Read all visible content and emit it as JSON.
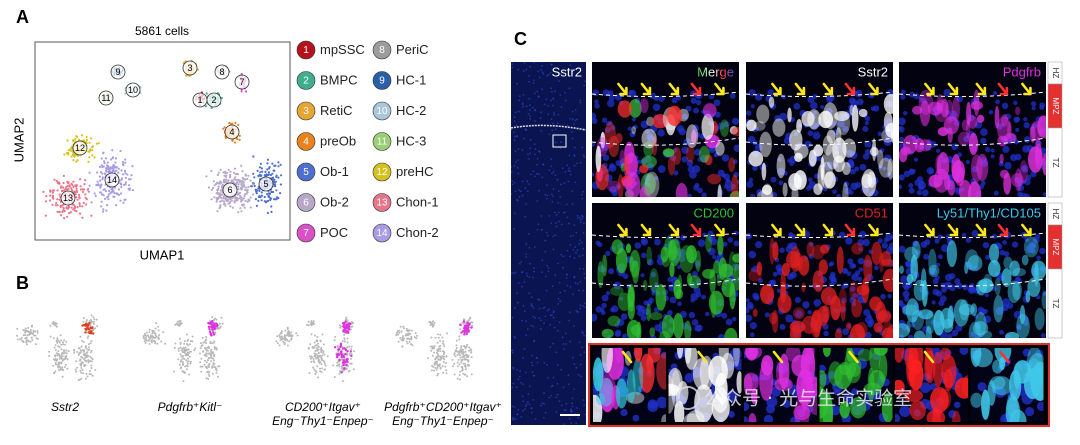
{
  "panel_a": {
    "letter": "A",
    "title": "5861 cells",
    "x_label": "UMAP1",
    "y_label": "UMAP2",
    "clusters": [
      {
        "number": 1,
        "name": "mpSSC",
        "color": "#b5121b"
      },
      {
        "number": 2,
        "name": "BMPC",
        "color": "#3fae8f"
      },
      {
        "number": 3,
        "name": "RetiC",
        "color": "#e8a531"
      },
      {
        "number": 4,
        "name": "preOb",
        "color": "#e8821e"
      },
      {
        "number": 5,
        "name": "Ob-1",
        "color": "#4f6fcf"
      },
      {
        "number": 6,
        "name": "Ob-2",
        "color": "#b7a8c9"
      },
      {
        "number": 7,
        "name": "POC",
        "color": "#d950c9"
      },
      {
        "number": 8,
        "name": "PeriC",
        "color": "#9c9c9c"
      },
      {
        "number": 9,
        "name": "HC-1",
        "color": "#2a5fa8"
      },
      {
        "number": 10,
        "name": "HC-2",
        "color": "#a9c7dc"
      },
      {
        "number": 11,
        "name": "HC-3",
        "color": "#9bcf75"
      },
      {
        "number": 12,
        "name": "preHC",
        "color": "#d6c21f"
      },
      {
        "number": 13,
        "name": "Chon-1",
        "color": "#e8748a"
      },
      {
        "number": 14,
        "name": "Chon-2",
        "color": "#a99be6"
      }
    ]
  },
  "panel_b": {
    "letter": "B",
    "plots": [
      {
        "lines": [
          "Sstr2"
        ]
      },
      {
        "lines": [
          "Pdgfrb⁺Kitl⁻"
        ]
      },
      {
        "lines": [
          "CD200⁺Itgav⁺",
          "Eng⁻Thy1⁻Enpep⁻"
        ]
      },
      {
        "lines": [
          "Pdgfrb⁺CD200⁺Itgav⁺",
          "Eng⁻Thy1⁻Enpep⁻"
        ]
      }
    ]
  },
  "panel_c": {
    "letter": "C",
    "overview_label": "Sstr2",
    "channels": [
      {
        "label": "Merge",
        "color": "#ffffff"
      },
      {
        "label": "Sstr2",
        "color": "#ffffff"
      },
      {
        "label": "Pdgfrb",
        "color": "#e030e0"
      },
      {
        "label": "CD200",
        "color": "#30c030"
      },
      {
        "label": "CD51",
        "color": "#e02020"
      },
      {
        "label": "Ly51/Thy1/CD105",
        "color": "#40c8e8"
      }
    ],
    "zones": [
      "HZ",
      "MPZ",
      "TZ"
    ],
    "watermark": "公众号 · 光与生命实验室"
  }
}
